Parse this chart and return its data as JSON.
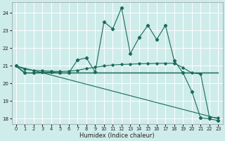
{
  "xlabel": "Humidex (Indice chaleur)",
  "bg_color": "#ceecea",
  "grid_color": "#ffffff",
  "line_color": "#1a6b5a",
  "xlim": [
    -0.5,
    23.5
  ],
  "ylim": [
    17.7,
    24.6
  ],
  "yticks": [
    18,
    19,
    20,
    21,
    22,
    23,
    24
  ],
  "xticks": [
    0,
    1,
    2,
    3,
    4,
    5,
    6,
    7,
    8,
    9,
    10,
    11,
    12,
    13,
    14,
    15,
    16,
    17,
    18,
    19,
    20,
    21,
    22,
    23
  ],
  "s1_x": [
    0,
    1,
    2,
    3,
    4,
    5,
    6,
    7,
    8,
    9,
    10,
    11,
    12,
    13,
    14,
    15,
    16,
    17,
    18,
    19,
    20,
    21,
    22,
    23
  ],
  "s1_y": [
    21.0,
    20.6,
    20.6,
    20.65,
    20.65,
    20.6,
    20.6,
    21.35,
    21.45,
    20.65,
    23.5,
    23.1,
    24.3,
    21.7,
    22.6,
    23.3,
    22.5,
    23.3,
    21.3,
    20.6,
    19.55,
    18.05,
    18.0,
    17.9
  ],
  "s2_x": [
    0,
    1,
    2,
    3,
    4,
    5,
    6,
    7,
    8,
    9,
    10,
    11,
    12,
    13,
    14,
    15,
    16,
    17,
    18,
    19,
    20,
    21,
    22,
    23
  ],
  "s2_y": [
    21.0,
    20.6,
    20.6,
    20.6,
    20.6,
    20.6,
    20.6,
    20.6,
    20.6,
    20.6,
    20.6,
    20.6,
    20.6,
    20.6,
    20.6,
    20.6,
    20.6,
    20.6,
    20.6,
    20.6,
    20.6,
    20.6,
    20.6,
    20.6
  ],
  "s3_x": [
    0,
    1,
    2,
    3,
    4,
    5,
    6,
    7,
    8,
    9,
    10,
    11,
    12,
    13,
    14,
    15,
    16,
    17,
    18,
    19,
    20,
    21,
    22,
    23
  ],
  "s3_y": [
    21.0,
    20.87,
    20.74,
    20.61,
    20.48,
    20.35,
    20.22,
    20.09,
    19.96,
    19.83,
    19.7,
    19.57,
    19.44,
    19.31,
    19.18,
    19.05,
    18.92,
    18.79,
    18.66,
    18.53,
    18.4,
    18.27,
    18.14,
    18.0
  ],
  "s4_x": [
    0,
    1,
    2,
    3,
    4,
    5,
    6,
    7,
    8,
    9,
    10,
    11,
    12,
    13,
    14,
    15,
    16,
    17,
    18,
    19,
    20,
    21,
    22,
    23
  ],
  "s4_y": [
    21.0,
    20.8,
    20.75,
    20.72,
    20.7,
    20.68,
    20.7,
    20.75,
    20.85,
    20.92,
    21.0,
    21.05,
    21.08,
    21.1,
    21.12,
    21.13,
    21.14,
    21.15,
    21.15,
    20.9,
    20.6,
    20.55,
    18.1,
    18.05
  ]
}
